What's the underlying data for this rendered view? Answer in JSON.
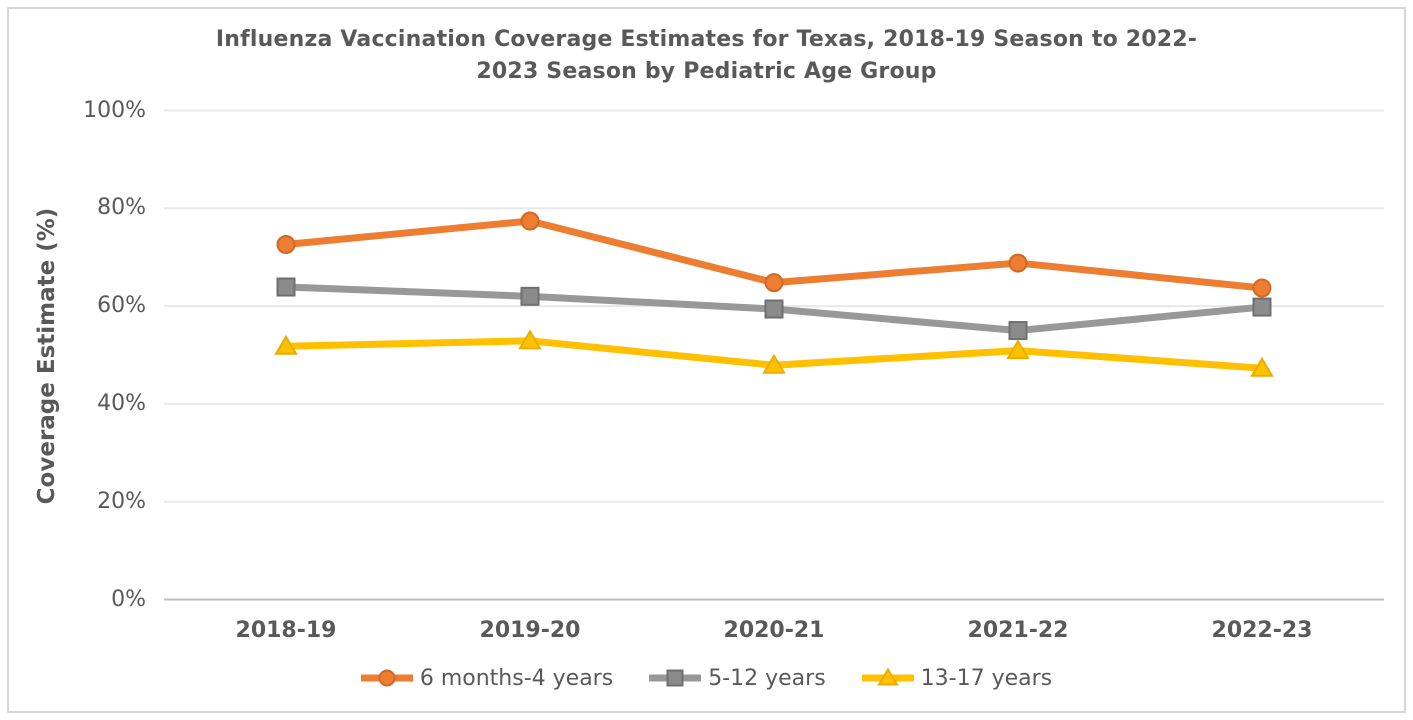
{
  "header": {
    "title_line1": "Influenza Vaccination Coverage Estimates for Texas, 2018-19 Season to 2022-",
    "title_line2": "2023 Season by Pediatric Age Group"
  },
  "colors": {
    "text": "#595959",
    "gridline": "#e8e8e8",
    "axis_line": "#bfbfbf",
    "frame_border": "#d6d6d6",
    "background": "#ffffff"
  },
  "chart_data": {
    "type": "line",
    "title": "Influenza Vaccination Coverage Estimates for Texas, 2018-19 Season to 2022-2023 Season by Pediatric Age Group",
    "xlabel": "",
    "ylabel": "Coverage Estimate (%)",
    "categories": [
      "2018-19",
      "2019-20",
      "2020-21",
      "2021-22",
      "2022-23"
    ],
    "series": [
      {
        "name": "6 months-4 years",
        "marker": "circle",
        "line_color": "#ED7D31",
        "marker_fill": "#ED7D31",
        "marker_stroke": "#CE6A25",
        "values": [
          72.6,
          77.4,
          64.8,
          68.8,
          63.7
        ]
      },
      {
        "name": "5-12 years",
        "marker": "square",
        "line_color": "#989898",
        "marker_fill": "#8B8B8B",
        "marker_stroke": "#6F6F6F",
        "values": [
          63.9,
          62.0,
          59.4,
          55.0,
          59.8
        ]
      },
      {
        "name": "13-17 years",
        "marker": "triangle",
        "line_color": "#FFC000",
        "marker_fill": "#FFC000",
        "marker_stroke": "#E8AE00",
        "values": [
          51.8,
          52.9,
          47.9,
          50.9,
          47.3
        ]
      }
    ],
    "ylim": [
      0,
      100
    ],
    "yticks": [
      0,
      20,
      40,
      60,
      80,
      100
    ],
    "ytick_labels": [
      "0%",
      "20%",
      "40%",
      "60%",
      "80%",
      "100%"
    ],
    "grid": "horizontal-major",
    "legend_position": "bottom"
  }
}
